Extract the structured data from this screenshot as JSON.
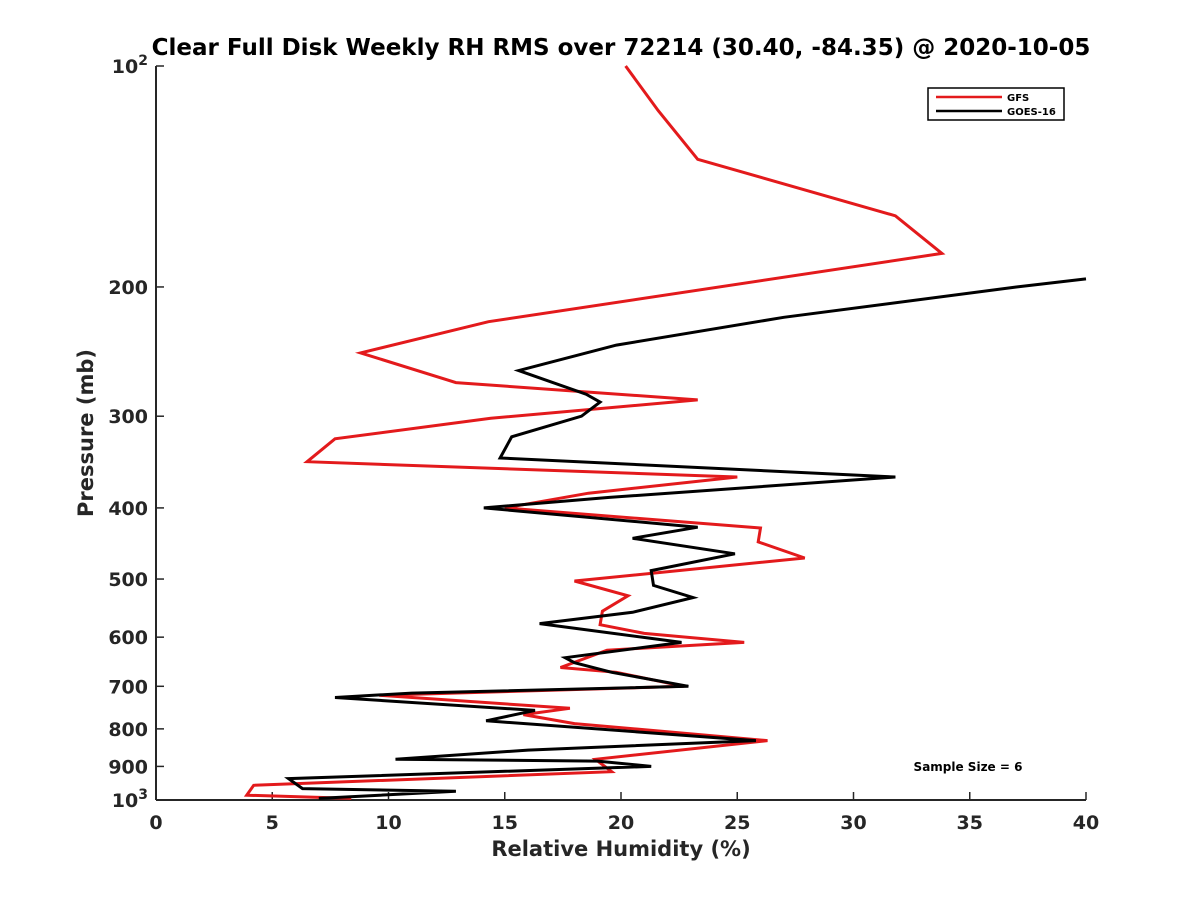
{
  "chart_data": {
    "type": "line",
    "title": "Clear Full Disk Weekly RH RMS over 72214 (30.40, -84.35) @ 2020-10-05",
    "xlabel": "Relative Humidity (%)",
    "ylabel": "Pressure (mb)",
    "xlim": [
      0,
      40
    ],
    "ylim": [
      100,
      1000
    ],
    "yscale": "log",
    "y_reversed": true,
    "x_ticks": [
      {
        "value": 0,
        "label": "0"
      },
      {
        "value": 5,
        "label": "5"
      },
      {
        "value": 10,
        "label": "10"
      },
      {
        "value": 15,
        "label": "15"
      },
      {
        "value": 20,
        "label": "20"
      },
      {
        "value": 25,
        "label": "25"
      },
      {
        "value": 30,
        "label": "30"
      },
      {
        "value": 35,
        "label": "35"
      },
      {
        "value": 40,
        "label": "40"
      }
    ],
    "y_ticks": [
      {
        "value": 100,
        "base": "10",
        "exp": "2"
      },
      {
        "value": 200,
        "base": "200",
        "exp": ""
      },
      {
        "value": 300,
        "base": "300",
        "exp": ""
      },
      {
        "value": 400,
        "base": "400",
        "exp": ""
      },
      {
        "value": 500,
        "base": "500",
        "exp": ""
      },
      {
        "value": 600,
        "base": "600",
        "exp": ""
      },
      {
        "value": 700,
        "base": "700",
        "exp": ""
      },
      {
        "value": 800,
        "base": "800",
        "exp": ""
      },
      {
        "value": 900,
        "base": "900",
        "exp": ""
      },
      {
        "value": 1000,
        "base": "10",
        "exp": "3"
      }
    ],
    "grid": false,
    "legend_position": "top-right",
    "annotation": "Sample Size = 6",
    "series": [
      {
        "name": "GFS",
        "color": "#e31a1c",
        "points": [
          [
            20.2,
            100
          ],
          [
            21.6,
            115
          ],
          [
            23.3,
            134
          ],
          [
            31.8,
            160
          ],
          [
            33.8,
            180
          ],
          [
            14.3,
            223
          ],
          [
            8.8,
            246
          ],
          [
            12.9,
            270
          ],
          [
            23.3,
            285
          ],
          [
            14.4,
            302
          ],
          [
            7.7,
            322
          ],
          [
            6.5,
            346
          ],
          [
            25.0,
            363
          ],
          [
            18.6,
            382
          ],
          [
            15.0,
            400
          ],
          [
            26.0,
            426
          ],
          [
            25.9,
            445
          ],
          [
            27.9,
            468
          ],
          [
            18.0,
            503
          ],
          [
            20.3,
            527
          ],
          [
            19.2,
            553
          ],
          [
            19.1,
            577
          ],
          [
            21.0,
            593
          ],
          [
            25.3,
            610
          ],
          [
            19.4,
            625
          ],
          [
            17.4,
            660
          ],
          [
            19.8,
            670
          ],
          [
            22.7,
            700
          ],
          [
            9.6,
            720
          ],
          [
            17.8,
            750
          ],
          [
            15.8,
            765
          ],
          [
            18.0,
            787
          ],
          [
            26.3,
            830
          ],
          [
            18.9,
            880
          ],
          [
            19.6,
            915
          ],
          [
            4.2,
            955
          ],
          [
            3.9,
            985
          ],
          [
            8.4,
            995
          ]
        ]
      },
      {
        "name": "GOES-16",
        "color": "#000000",
        "points": [
          [
            40.0,
            195
          ],
          [
            37.0,
            200
          ],
          [
            27.0,
            220
          ],
          [
            19.8,
            240
          ],
          [
            15.6,
            260
          ],
          [
            18.5,
            280
          ],
          [
            19.1,
            287
          ],
          [
            18.3,
            300
          ],
          [
            15.3,
            320
          ],
          [
            14.8,
            342
          ],
          [
            31.8,
            363
          ],
          [
            19.5,
            387
          ],
          [
            14.1,
            400
          ],
          [
            23.3,
            425
          ],
          [
            20.5,
            440
          ],
          [
            24.9,
            462
          ],
          [
            21.3,
            487
          ],
          [
            21.4,
            510
          ],
          [
            23.1,
            530
          ],
          [
            20.5,
            555
          ],
          [
            16.5,
            575
          ],
          [
            22.6,
            610
          ],
          [
            17.6,
            640
          ],
          [
            18.0,
            650
          ],
          [
            19.6,
            670
          ],
          [
            22.9,
            700
          ],
          [
            11.0,
            715
          ],
          [
            7.7,
            725
          ],
          [
            16.3,
            755
          ],
          [
            14.2,
            780
          ],
          [
            25.8,
            830
          ],
          [
            16.0,
            855
          ],
          [
            10.3,
            880
          ],
          [
            19.0,
            885
          ],
          [
            21.3,
            900
          ],
          [
            5.7,
            935
          ],
          [
            6.3,
            965
          ],
          [
            12.9,
            973
          ],
          [
            7.0,
            995
          ]
        ]
      }
    ]
  }
}
